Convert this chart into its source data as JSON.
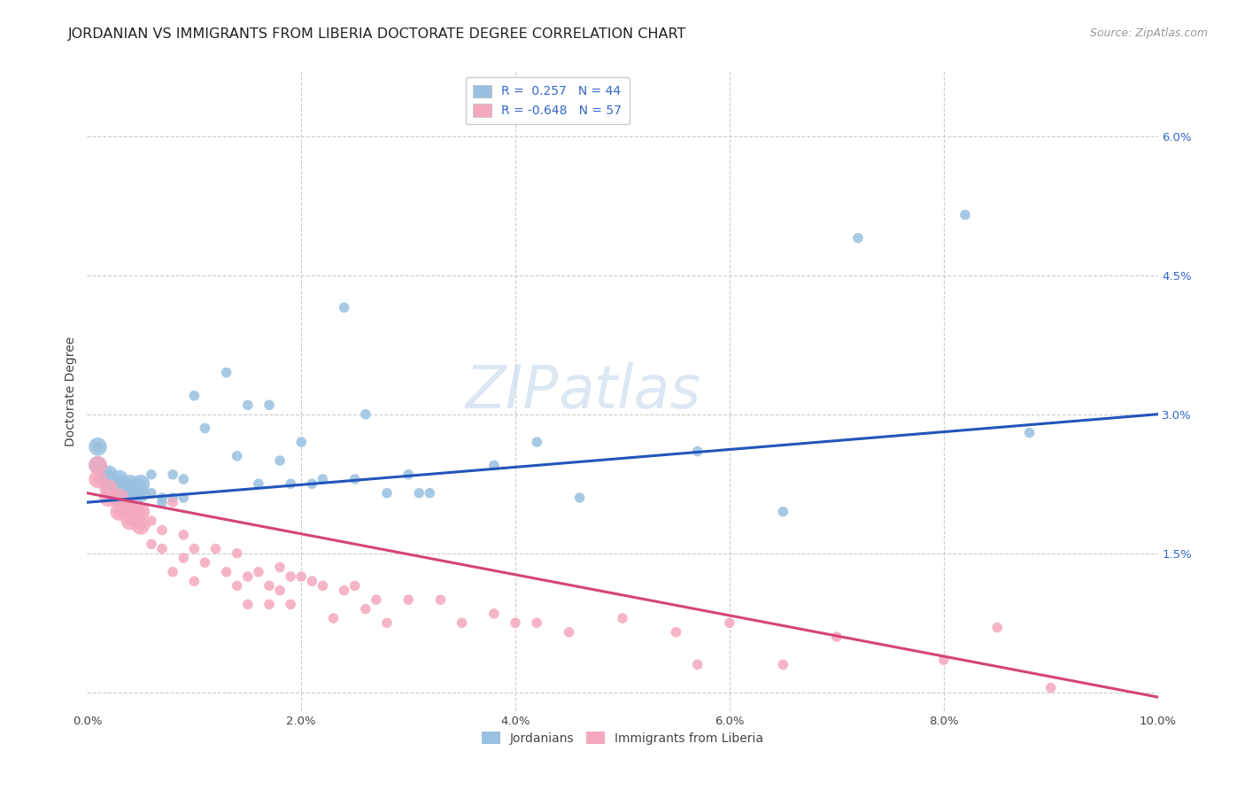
{
  "title": "JORDANIAN VS IMMIGRANTS FROM LIBERIA DOCTORATE DEGREE CORRELATION CHART",
  "source": "Source: ZipAtlas.com",
  "ylabel": "Doctorate Degree",
  "xlim": [
    0.0,
    0.1
  ],
  "ylim": [
    -0.002,
    0.067
  ],
  "xticks": [
    0.0,
    0.02,
    0.04,
    0.06,
    0.08,
    0.1
  ],
  "xtick_labels": [
    "0.0%",
    "2.0%",
    "4.0%",
    "6.0%",
    "8.0%",
    "10.0%"
  ],
  "yticks_right": [
    0.015,
    0.03,
    0.045,
    0.06
  ],
  "ytick_labels_right": [
    "1.5%",
    "3.0%",
    "4.5%",
    "6.0%"
  ],
  "blue_color": "#99c0e0",
  "pink_color": "#f4a8be",
  "blue_line_color": "#2255bb",
  "pink_line_color": "#d44477",
  "watermark_top": "ZIP",
  "watermark_bot": "atlas",
  "background_color": "#ffffff",
  "grid_color": "#cccccc",
  "title_fontsize": 11.5,
  "source_fontsize": 9,
  "axis_label_fontsize": 10,
  "tick_fontsize": 9.5,
  "legend_fontsize": 10,
  "watermark_fontsize": 48,
  "blue_scatter": [
    [
      0.001,
      0.0265
    ],
    [
      0.001,
      0.0245
    ],
    [
      0.002,
      0.0235
    ],
    [
      0.002,
      0.0225
    ],
    [
      0.003,
      0.023
    ],
    [
      0.003,
      0.0215
    ],
    [
      0.004,
      0.0225
    ],
    [
      0.004,
      0.0215
    ],
    [
      0.005,
      0.0225
    ],
    [
      0.005,
      0.0215
    ],
    [
      0.006,
      0.0235
    ],
    [
      0.006,
      0.0215
    ],
    [
      0.007,
      0.021
    ],
    [
      0.007,
      0.0205
    ],
    [
      0.008,
      0.0235
    ],
    [
      0.008,
      0.021
    ],
    [
      0.009,
      0.023
    ],
    [
      0.009,
      0.021
    ],
    [
      0.01,
      0.032
    ],
    [
      0.011,
      0.0285
    ],
    [
      0.013,
      0.0345
    ],
    [
      0.014,
      0.0255
    ],
    [
      0.015,
      0.031
    ],
    [
      0.016,
      0.0225
    ],
    [
      0.017,
      0.031
    ],
    [
      0.018,
      0.025
    ],
    [
      0.019,
      0.0225
    ],
    [
      0.02,
      0.027
    ],
    [
      0.021,
      0.0225
    ],
    [
      0.022,
      0.023
    ],
    [
      0.024,
      0.0415
    ],
    [
      0.025,
      0.023
    ],
    [
      0.026,
      0.03
    ],
    [
      0.028,
      0.0215
    ],
    [
      0.03,
      0.0235
    ],
    [
      0.031,
      0.0215
    ],
    [
      0.032,
      0.0215
    ],
    [
      0.038,
      0.0245
    ],
    [
      0.042,
      0.027
    ],
    [
      0.046,
      0.021
    ],
    [
      0.057,
      0.026
    ],
    [
      0.065,
      0.0195
    ],
    [
      0.072,
      0.049
    ],
    [
      0.082,
      0.0515
    ],
    [
      0.088,
      0.028
    ]
  ],
  "pink_scatter": [
    [
      0.001,
      0.0245
    ],
    [
      0.001,
      0.023
    ],
    [
      0.002,
      0.022
    ],
    [
      0.002,
      0.021
    ],
    [
      0.003,
      0.021
    ],
    [
      0.003,
      0.0195
    ],
    [
      0.004,
      0.02
    ],
    [
      0.004,
      0.0185
    ],
    [
      0.005,
      0.0195
    ],
    [
      0.005,
      0.018
    ],
    [
      0.006,
      0.0185
    ],
    [
      0.006,
      0.016
    ],
    [
      0.007,
      0.0175
    ],
    [
      0.007,
      0.0155
    ],
    [
      0.008,
      0.0205
    ],
    [
      0.008,
      0.013
    ],
    [
      0.009,
      0.017
    ],
    [
      0.009,
      0.0145
    ],
    [
      0.01,
      0.0155
    ],
    [
      0.01,
      0.012
    ],
    [
      0.011,
      0.014
    ],
    [
      0.012,
      0.0155
    ],
    [
      0.013,
      0.013
    ],
    [
      0.014,
      0.015
    ],
    [
      0.014,
      0.0115
    ],
    [
      0.015,
      0.0125
    ],
    [
      0.015,
      0.0095
    ],
    [
      0.016,
      0.013
    ],
    [
      0.017,
      0.0115
    ],
    [
      0.017,
      0.0095
    ],
    [
      0.018,
      0.0135
    ],
    [
      0.018,
      0.011
    ],
    [
      0.019,
      0.0125
    ],
    [
      0.019,
      0.0095
    ],
    [
      0.02,
      0.0125
    ],
    [
      0.021,
      0.012
    ],
    [
      0.022,
      0.0115
    ],
    [
      0.023,
      0.008
    ],
    [
      0.024,
      0.011
    ],
    [
      0.025,
      0.0115
    ],
    [
      0.026,
      0.009
    ],
    [
      0.027,
      0.01
    ],
    [
      0.028,
      0.0075
    ],
    [
      0.03,
      0.01
    ],
    [
      0.033,
      0.01
    ],
    [
      0.035,
      0.0075
    ],
    [
      0.038,
      0.0085
    ],
    [
      0.04,
      0.0075
    ],
    [
      0.042,
      0.0075
    ],
    [
      0.045,
      0.0065
    ],
    [
      0.05,
      0.008
    ],
    [
      0.055,
      0.0065
    ],
    [
      0.057,
      0.003
    ],
    [
      0.06,
      0.0075
    ],
    [
      0.065,
      0.003
    ],
    [
      0.07,
      0.006
    ],
    [
      0.08,
      0.0035
    ],
    [
      0.085,
      0.007
    ],
    [
      0.09,
      0.0005
    ]
  ],
  "blue_line_x": [
    0.0,
    0.1
  ],
  "blue_line_y": [
    0.0205,
    0.03
  ],
  "pink_line_x": [
    0.0,
    0.1
  ],
  "pink_line_y": [
    0.0215,
    -0.0005
  ]
}
